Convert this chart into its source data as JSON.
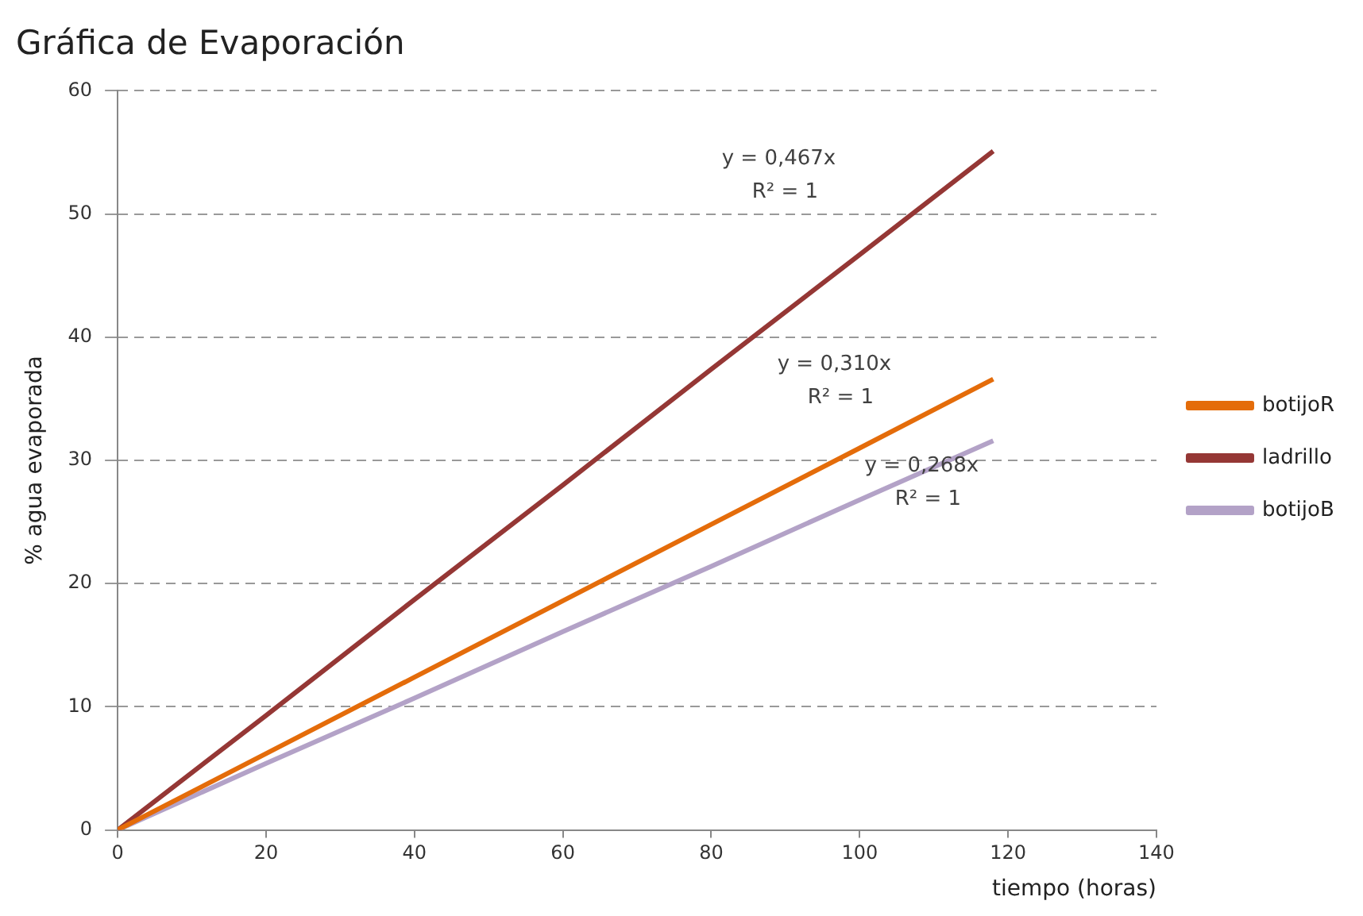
{
  "chart_data": {
    "type": "line",
    "title": "Gráfica de Evaporación",
    "xlabel": "tiempo (horas)",
    "ylabel": "% agua evaporada",
    "x": [
      0,
      20,
      40,
      60,
      80,
      100,
      118
    ],
    "series": [
      {
        "name": "botijoR",
        "color": "#e46c0a",
        "values": [
          0,
          6.2,
          12.4,
          18.6,
          24.8,
          31,
          36.6
        ]
      },
      {
        "name": "ladrillo",
        "color": "#953735",
        "values": [
          0,
          9.3,
          18.7,
          28,
          37.4,
          46.7,
          55.1
        ]
      },
      {
        "name": "botijoB",
        "color": "#b3a2c7",
        "values": [
          0,
          5.4,
          10.7,
          16.1,
          21.4,
          26.8,
          31.6
        ]
      }
    ],
    "xlim": [
      0,
      140
    ],
    "xticks": [
      0,
      20,
      40,
      60,
      80,
      100,
      120,
      140
    ],
    "ylim": [
      0,
      60
    ],
    "yticks": [
      0,
      10,
      20,
      30,
      40,
      50,
      60
    ],
    "grid": "y",
    "legend": "right",
    "marker": "none",
    "line_style": "solid",
    "annotations": [
      "y = 0,310x",
      "R² = 1",
      "y = 0,467x",
      "R² = 1",
      "y = 0,268x",
      "R² = 1"
    ]
  }
}
